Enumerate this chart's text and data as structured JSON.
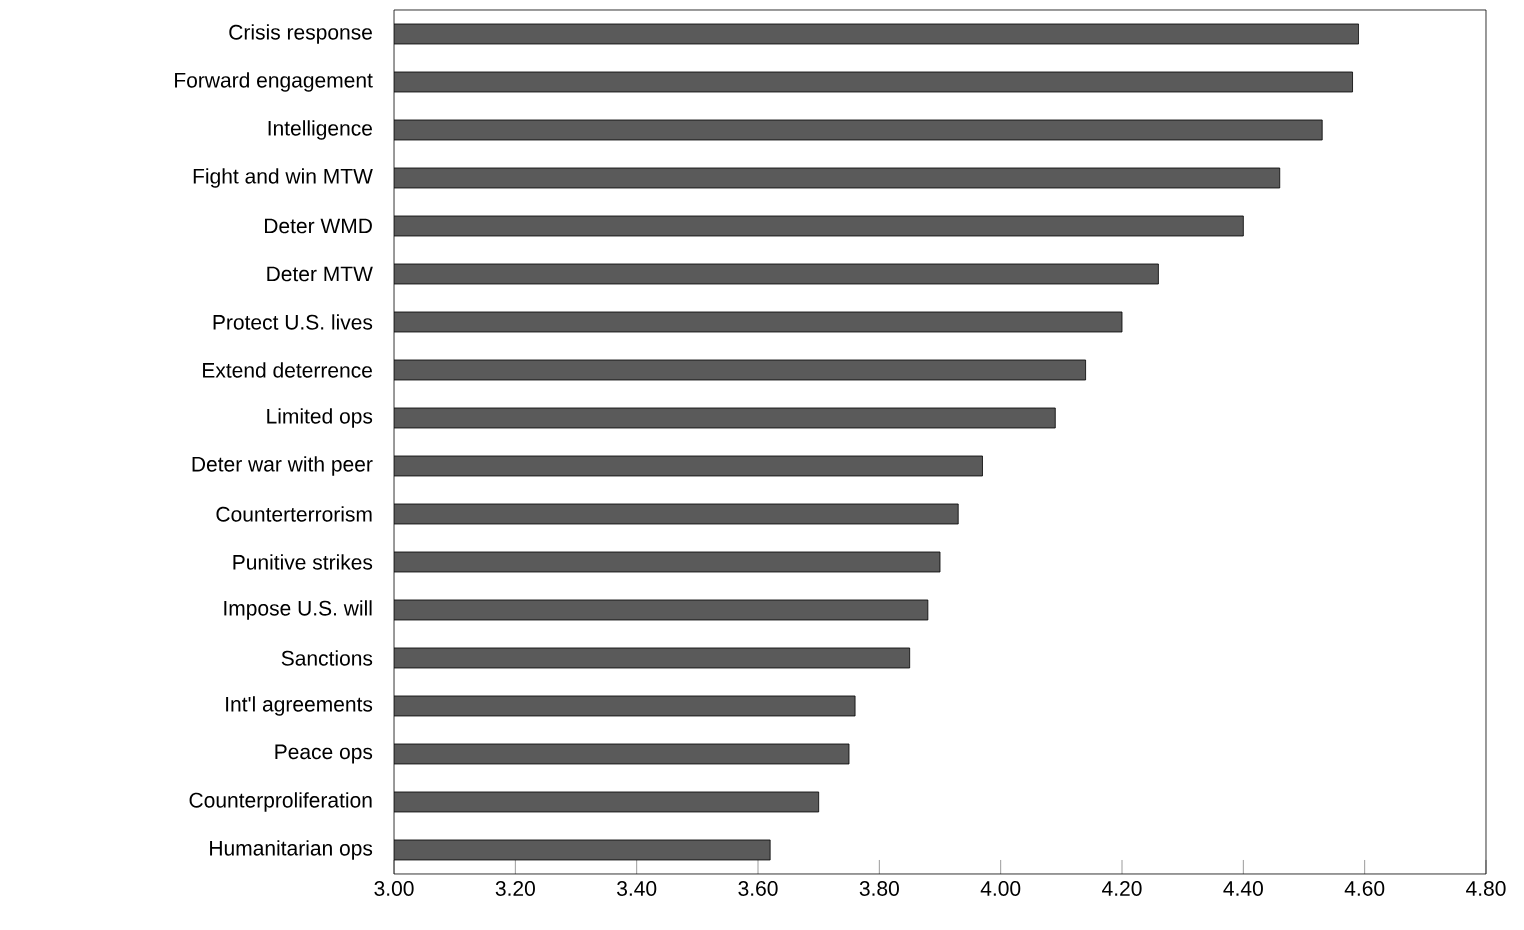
{
  "chart_data": {
    "type": "bar",
    "orientation": "horizontal",
    "color": "#5a5a5a",
    "categories": [
      "Crisis response",
      "Forward engagement",
      "Intelligence",
      "Fight and win MTW",
      "Deter WMD",
      "Deter MTW",
      "Protect U.S. lives",
      "Extend deterrence",
      "Limited ops",
      "Deter war with peer",
      "Counterterrorism",
      "Punitive strikes",
      "Impose U.S. will",
      "Sanctions",
      "Int'l agreements",
      "Peace ops",
      "Counterproliferation",
      "Humanitarian ops"
    ],
    "values": [
      4.59,
      4.58,
      4.53,
      4.46,
      4.4,
      4.26,
      4.2,
      4.14,
      4.09,
      3.97,
      3.93,
      3.9,
      3.88,
      3.85,
      3.76,
      3.75,
      3.7,
      3.62
    ],
    "xlim": [
      3.0,
      4.8
    ],
    "xticks": [
      {
        "value": 3.0,
        "label": "3.00"
      },
      {
        "value": 3.2,
        "label": "3.20"
      },
      {
        "value": 3.4,
        "label": "3.40"
      },
      {
        "value": 3.6,
        "label": "3.60"
      },
      {
        "value": 3.8,
        "label": "3.80"
      },
      {
        "value": 4.0,
        "label": "4.00"
      },
      {
        "value": 4.2,
        "label": "4.20"
      },
      {
        "value": 4.4,
        "label": "4.40"
      },
      {
        "value": 4.6,
        "label": "4.60"
      },
      {
        "value": 4.8,
        "label": "4.80"
      }
    ],
    "grid": false
  }
}
